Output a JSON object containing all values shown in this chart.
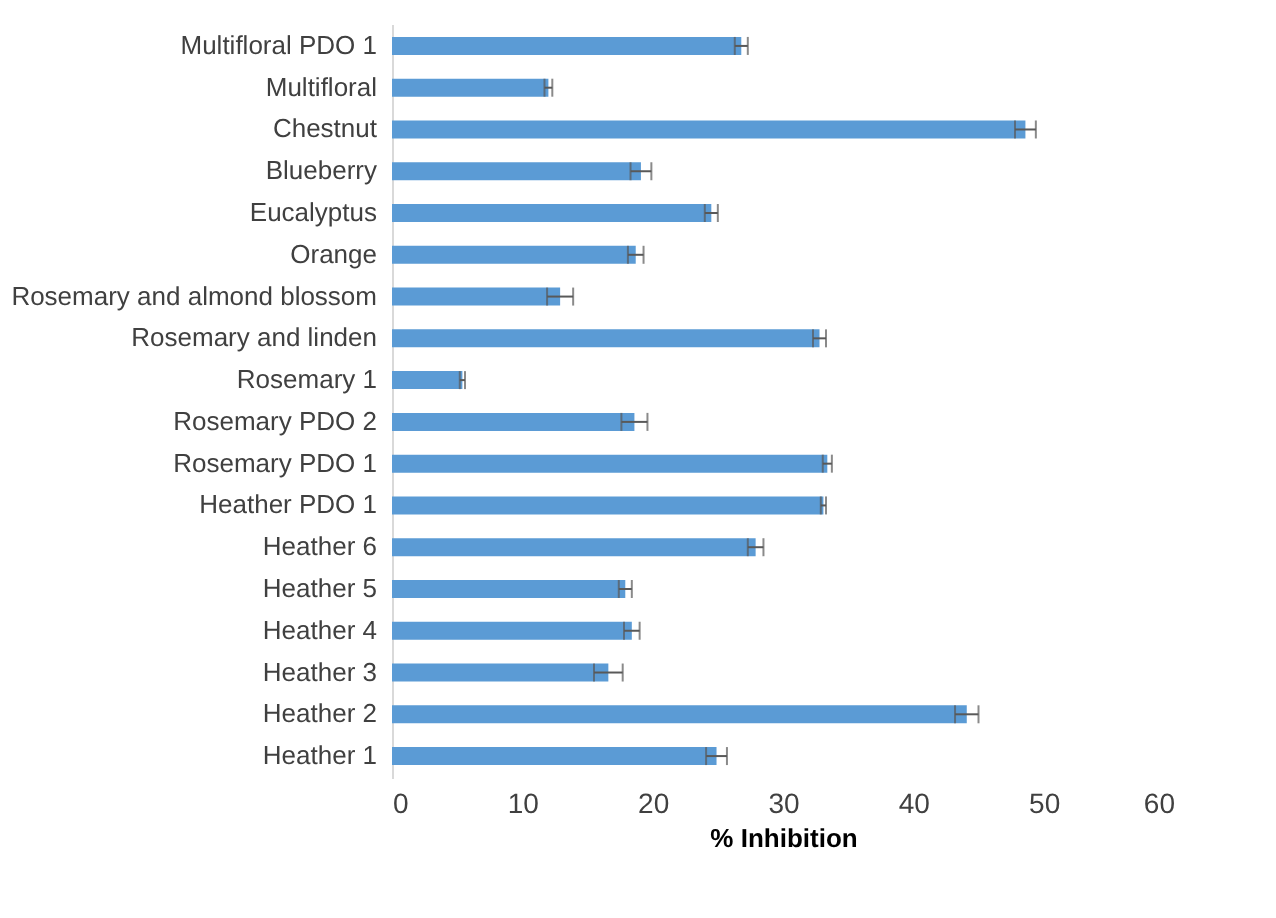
{
  "chart_data": {
    "type": "bar",
    "orientation": "horizontal",
    "xlabel": "% Inhibition",
    "categories": [
      "Multifloral PDO 1",
      "Multifloral",
      "Chestnut",
      "Blueberry",
      "Eucalyptus",
      "Orange ",
      "Rosemary and almond blossom",
      "Rosemary  and linden",
      "Rosemary 1",
      "Rosemary PDO 2",
      "Rosemary PDO 1",
      "Heather PDO 1",
      "Heather 6",
      "Heather 5",
      "Heather 4",
      "Heather 3",
      "Heather 2",
      "Heather 1"
    ],
    "values": [
      26.8,
      12.0,
      48.6,
      19.1,
      24.5,
      18.7,
      12.9,
      32.8,
      5.4,
      18.6,
      33.4,
      33.1,
      27.9,
      17.9,
      18.4,
      16.6,
      44.1,
      24.9
    ],
    "errors": [
      0.5,
      0.3,
      0.8,
      0.8,
      0.5,
      0.6,
      1.0,
      0.5,
      0.2,
      1.0,
      0.35,
      0.2,
      0.6,
      0.5,
      0.6,
      1.1,
      0.9,
      0.8
    ],
    "color": "#5b9bd5",
    "xlim": [
      0,
      60
    ],
    "xticks": [
      0,
      10,
      20,
      30,
      40,
      50,
      60
    ],
    "grid": false
  }
}
